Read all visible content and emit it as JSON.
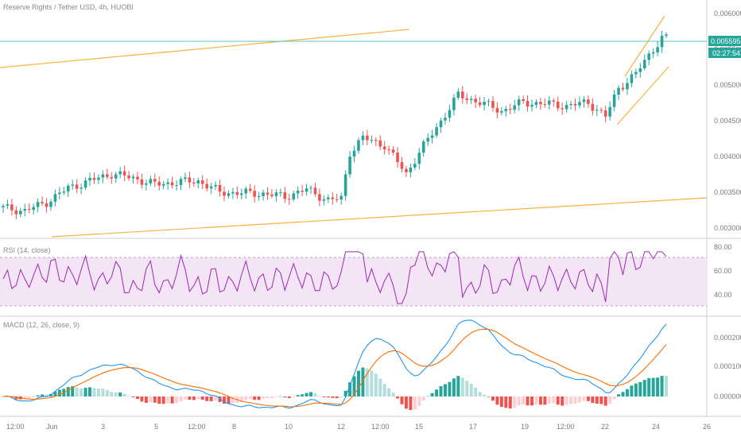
{
  "chart_data": {
    "type": "candlestick",
    "title": "Reserve Rights / Tether USD, 4h, HUOBI",
    "price_axis": {
      "ticks": [
        "0.006000",
        "0.005500",
        "0.005000",
        "0.004500",
        "0.004000",
        "0.003500",
        "0.003000"
      ],
      "last_price": "0.005595",
      "countdown": "02:27:54"
    },
    "time_axis": {
      "ticks": [
        "12:00",
        "Jun",
        "3",
        "5",
        "12:00",
        "8",
        "10",
        "12",
        "12:00",
        "15",
        "17",
        "19",
        "12:00",
        "22",
        "24",
        "26"
      ]
    },
    "rsi": {
      "title": "RSI (14, close)",
      "levels": [
        "80.00",
        "60.00",
        "40.00"
      ],
      "upper_band": 70,
      "lower_band": 30
    },
    "macd": {
      "title": "MACD (12, 26, close, 9)",
      "ticks": [
        "0.000200",
        "0.000100",
        "0.000000"
      ]
    },
    "colors": {
      "up": "#26a69a",
      "down": "#ef5350",
      "hist_up_strong": "#26a69a",
      "hist_up_weak": "#b2dfdb",
      "hist_down_strong": "#ef5350",
      "hist_down_weak": "#ffcdd2",
      "rsi_line": "#9c27b0",
      "rsi_band": "#f3e5f5",
      "macd_line": "#2196f3",
      "signal_line": "#ff6d00",
      "trendline": "#f5b342",
      "price_line": "#5fc3c0"
    },
    "price_anchors": [
      [
        0,
        0.00322
      ],
      [
        5,
        0.00318
      ],
      [
        10,
        0.0033
      ],
      [
        15,
        0.0035
      ],
      [
        20,
        0.0036
      ],
      [
        25,
        0.0037
      ],
      [
        30,
        0.00364
      ],
      [
        35,
        0.00355
      ],
      [
        40,
        0.00358
      ],
      [
        45,
        0.0036
      ],
      [
        50,
        0.00344
      ],
      [
        55,
        0.00343
      ],
      [
        60,
        0.00342
      ],
      [
        65,
        0.00338
      ],
      [
        70,
        0.00348
      ],
      [
        75,
        0.00333
      ],
      [
        78,
        0.00335
      ],
      [
        80,
        0.004
      ],
      [
        83,
        0.0042
      ],
      [
        88,
        0.0041
      ],
      [
        93,
        0.0037
      ],
      [
        96,
        0.004
      ],
      [
        100,
        0.00435
      ],
      [
        105,
        0.0048
      ],
      [
        110,
        0.0047
      ],
      [
        115,
        0.00458
      ],
      [
        120,
        0.0047
      ],
      [
        125,
        0.00468
      ],
      [
        130,
        0.00465
      ],
      [
        135,
        0.0047
      ],
      [
        139,
        0.0045
      ],
      [
        142,
        0.0049
      ],
      [
        146,
        0.0051
      ],
      [
        150,
        0.00545
      ],
      [
        152,
        0.0056
      ]
    ]
  }
}
